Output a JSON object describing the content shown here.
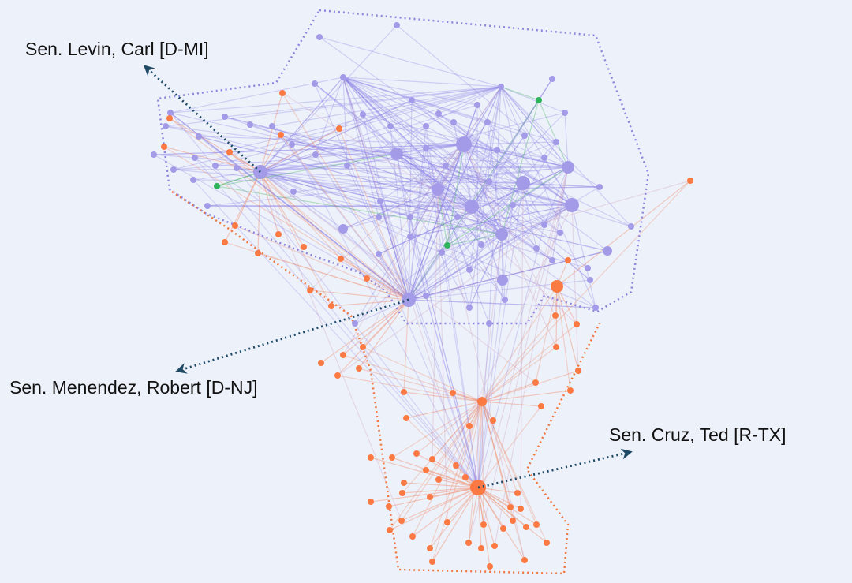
{
  "annotations": {
    "levin": "Sen. Levin, Carl [D-MI]",
    "menendez": "Sen. Menendez, Robert [D-NJ]",
    "cruz": "Sen. Cruz, Ted [R-TX]"
  }
}
